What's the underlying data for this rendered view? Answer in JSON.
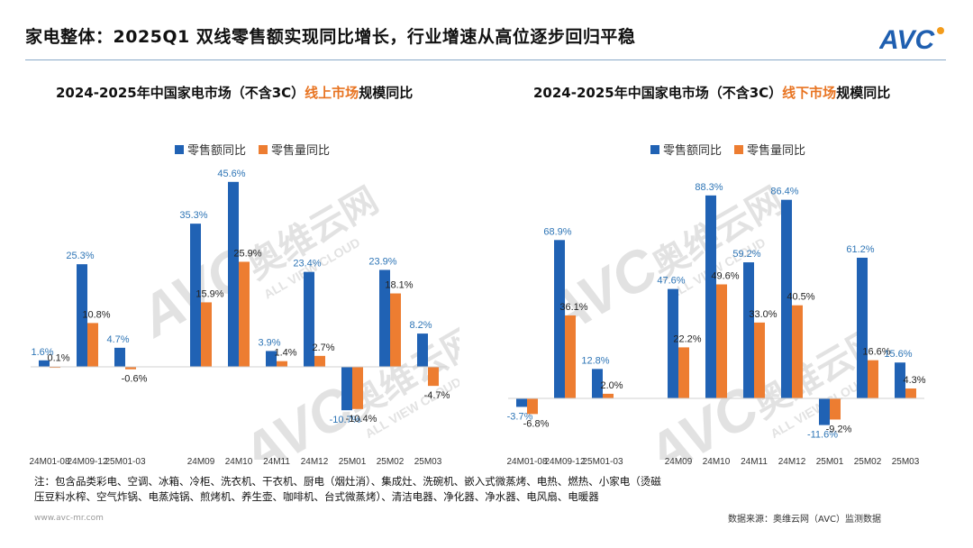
{
  "header": {
    "title": "家电整体：2025Q1 双线零售额实现同比增长，行业增速从高位逐步回归平稳",
    "logo_text": "AVC"
  },
  "colors": {
    "blue": "#2062b4",
    "orange": "#ed7d31",
    "blue_label": "#2e75b6",
    "accent": "#e87422"
  },
  "legend": {
    "amount": "零售额同比",
    "volume": "零售量同比"
  },
  "charts": [
    {
      "title_prefix": "2024-2025年中国家电市场（不含3C）",
      "title_highlight": "线上市场",
      "title_suffix": "规模同比"
    },
    {
      "title_prefix": "2024-2025年中国家电市场（不含3C）",
      "title_highlight": "线下市场",
      "title_suffix": "规模同比"
    }
  ],
  "chart_data": [
    {
      "type": "bar",
      "title": "2024-2025年中国家电市场（不含3C）线上市场规模同比",
      "categories": [
        "24M01-08",
        "24M09-12",
        "25M01-03",
        "",
        "24M09",
        "24M10",
        "24M11",
        "24M12",
        "25M01",
        "25M02",
        "25M03"
      ],
      "category_labels": [
        "24M01-08",
        "24M09-12",
        "25M01-03",
        "24M09",
        "24M10",
        "24M11",
        "24M12",
        "25M01",
        "25M02",
        "25M03"
      ],
      "series": [
        {
          "name": "零售额同比",
          "values": [
            1.6,
            25.3,
            4.7,
            null,
            35.3,
            45.6,
            3.9,
            23.4,
            -10.7,
            23.9,
            8.2
          ],
          "labels": [
            "1.6%",
            "25.3%",
            "4.7%",
            "",
            "35.3%",
            "45.6%",
            "3.9%",
            "23.4%",
            "-10.7%",
            "23.9%",
            "8.2%"
          ]
        },
        {
          "name": "零售量同比",
          "values": [
            0.1,
            10.8,
            -0.6,
            null,
            15.9,
            25.9,
            1.4,
            2.7,
            -10.4,
            18.1,
            -4.7
          ],
          "labels": [
            "0.1%",
            "10.8%",
            "-0.6%",
            "",
            "15.9%",
            "25.9%",
            "1.4%",
            "2.7%",
            "-10.4%",
            "18.1%",
            "-4.7%"
          ]
        }
      ],
      "ylim": [
        -16,
        50
      ]
    },
    {
      "type": "bar",
      "title": "2024-2025年中国家电市场（不含3C）线下市场规模同比",
      "categories": [
        "24M01-08",
        "24M09-12",
        "25M01-03",
        "",
        "24M09",
        "24M10",
        "24M11",
        "24M12",
        "25M01",
        "25M02",
        "25M03"
      ],
      "category_labels": [
        "24M01-08",
        "24M09-12",
        "25M01-03",
        "24M09",
        "24M10",
        "24M11",
        "24M12",
        "25M01",
        "25M02",
        "25M03"
      ],
      "series": [
        {
          "name": "零售额同比",
          "values": [
            -3.7,
            68.9,
            12.8,
            null,
            47.6,
            88.3,
            59.2,
            86.4,
            -11.6,
            61.2,
            15.6
          ],
          "labels": [
            "-3.7%",
            "68.9%",
            "12.8%",
            "",
            "47.6%",
            "88.3%",
            "59.2%",
            "86.4%",
            "-11.6%",
            "61.2%",
            "15.6%"
          ]
        },
        {
          "name": "零售量同比",
          "values": [
            -6.8,
            36.1,
            2.0,
            null,
            22.2,
            49.6,
            33.0,
            40.5,
            -9.2,
            16.6,
            4.3
          ],
          "labels": [
            "-6.8%",
            "36.1%",
            "2.0%",
            "",
            "22.2%",
            "49.6%",
            "33.0%",
            "40.5%",
            "-9.2%",
            "16.6%",
            "4.3%"
          ]
        }
      ],
      "ylim": [
        -20,
        95
      ]
    }
  ],
  "note": "注：包含品类彩电、空调、冰箱、冷柜、洗衣机、干衣机、厨电（烟灶消）、集成灶、洗碗机、嵌入式微蒸烤、电热、燃热、小家电（烫磁压豆料水榨、空气炸锅、电蒸炖锅、煎烤机、养生壶、咖啡机、台式微蒸烤）、清洁电器、净化器、净水器、电风扇、电暖器",
  "footer": {
    "website": "www.avc-mr.com",
    "source": "数据来源：奥维云网（AVC）监测数据"
  },
  "watermark": {
    "logo": "AVC",
    "cn": "奥维云网",
    "en": "ALL VIEW CLOUD"
  }
}
